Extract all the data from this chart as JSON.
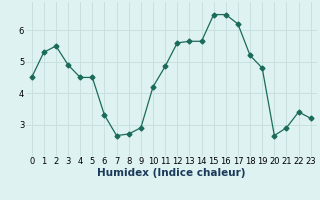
{
  "x": [
    0,
    1,
    2,
    3,
    4,
    5,
    6,
    7,
    8,
    9,
    10,
    11,
    12,
    13,
    14,
    15,
    16,
    17,
    18,
    19,
    20,
    21,
    22,
    23
  ],
  "y": [
    4.5,
    5.3,
    5.5,
    4.9,
    4.5,
    4.5,
    3.3,
    2.65,
    2.7,
    2.9,
    4.2,
    4.85,
    5.6,
    5.65,
    5.65,
    6.5,
    6.5,
    6.2,
    5.2,
    4.8,
    2.65,
    2.9,
    3.4,
    3.2
  ],
  "line_color": "#1a6b5a",
  "marker": "D",
  "marker_size": 2.5,
  "bg_color": "#dff2f2",
  "grid_color": "#c8e0e0",
  "xlabel": "Humidex (Indice chaleur)",
  "xlabel_fontsize": 7.5,
  "tick_fontsize": 6,
  "xlim": [
    -0.5,
    23.5
  ],
  "ylim": [
    2.0,
    6.9
  ],
  "yticks": [
    3,
    4,
    5,
    6
  ],
  "xtick_labels": [
    "0",
    "1",
    "2",
    "3",
    "4",
    "5",
    "6",
    "7",
    "8",
    "9",
    "10",
    "11",
    "12",
    "13",
    "14",
    "15",
    "16",
    "17",
    "18",
    "19",
    "20",
    "21",
    "22",
    "23"
  ]
}
